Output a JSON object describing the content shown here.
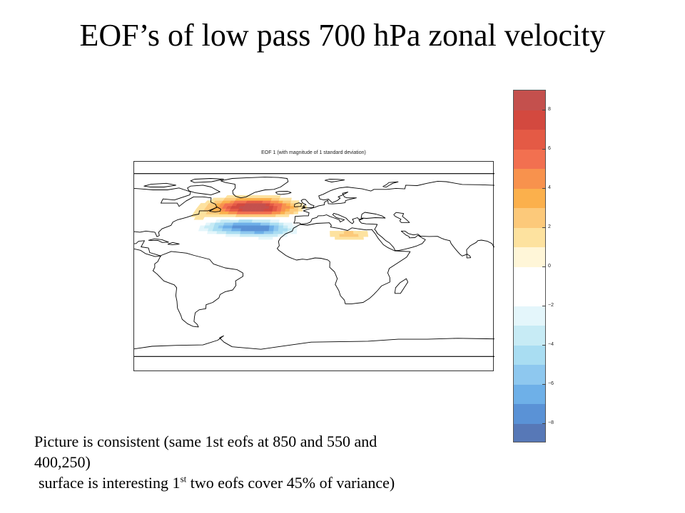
{
  "slide": {
    "title": "EOF’s of low pass 700 hPa zonal velocity"
  },
  "map": {
    "title": "EOF 1  (with magnitude of 1 standard deviation)",
    "projection": "robinson",
    "coastline_color": "#000000",
    "anomaly_patches": [
      {
        "lon": -40,
        "lat": 52,
        "value": 7,
        "sigma_lon": 14,
        "sigma_lat": 5.5
      },
      {
        "lon": -25,
        "lat": 50,
        "value": 4.5,
        "sigma_lon": 12,
        "sigma_lat": 5
      },
      {
        "lon": -38,
        "lat": 34,
        "value": -7,
        "sigma_lon": 15,
        "sigma_lat": 5
      },
      {
        "lon": -22,
        "lat": 30,
        "value": -3.5,
        "sigma_lon": 10,
        "sigma_lat": 5
      },
      {
        "lon": 20,
        "lat": 27,
        "value": 2.5,
        "sigma_lon": 8,
        "sigma_lat": 3
      },
      {
        "lon": -62,
        "lat": 41,
        "value": 1.5,
        "sigma_lon": 5,
        "sigma_lat": 4
      },
      {
        "lon": 0,
        "lat": 43,
        "value": -1.5,
        "sigma_lon": 5,
        "sigma_lat": 3
      }
    ]
  },
  "colorbar": {
    "min": -9,
    "max": 9,
    "step": 1,
    "ticks": [
      {
        "value": 8,
        "label": "8"
      },
      {
        "value": 6,
        "label": "6"
      },
      {
        "value": 4,
        "label": "4"
      },
      {
        "value": 2,
        "label": "2"
      },
      {
        "value": 0,
        "label": "0"
      },
      {
        "value": -2,
        "label": "−2"
      },
      {
        "value": -4,
        "label": "−4"
      },
      {
        "value": -6,
        "label": "−6"
      },
      {
        "value": -8,
        "label": "−8"
      }
    ],
    "colors_top_to_bottom": [
      "#c4504d",
      "#d3493f",
      "#e45a45",
      "#f27050",
      "#f8924d",
      "#fbb04c",
      "#fcc97a",
      "#fde29f",
      "#fff6d8",
      "#ffffff",
      "#ffffff",
      "#e4f6fb",
      "#c7ebf5",
      "#a9ddf2",
      "#8ec8ef",
      "#6eb0e8",
      "#5a92d6",
      "#5778b7"
    ]
  },
  "caption": {
    "line1": "Picture is consistent  (same 1st eofs at 850 and 550 and",
    "line2": "400,250)",
    "line3_pre": " surface is interesting 1",
    "line3_sup": "st",
    "line3_post": " two eofs cover 45% of variance)"
  }
}
